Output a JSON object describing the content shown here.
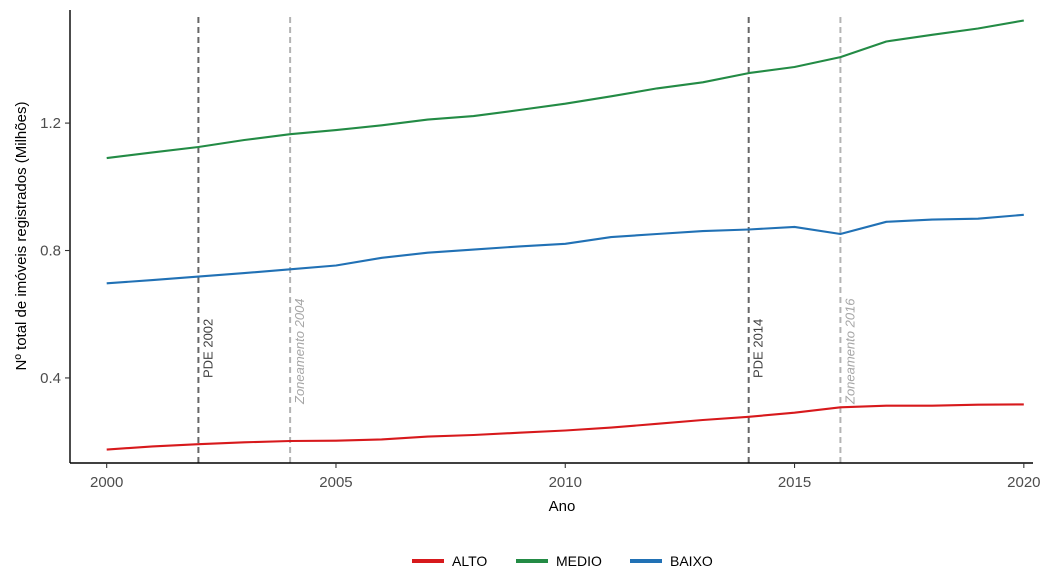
{
  "chart_data": {
    "type": "line",
    "title": "",
    "xlabel": "Ano",
    "ylabel": "Nº total de imóveis registrados (Milhões)",
    "x": [
      2000,
      2001,
      2002,
      2003,
      2004,
      2005,
      2006,
      2007,
      2008,
      2009,
      2010,
      2011,
      2012,
      2013,
      2014,
      2015,
      2016,
      2017,
      2018,
      2019,
      2020
    ],
    "xlim": [
      1999.2,
      2020.2
    ],
    "ylim": [
      0.133,
      1.555
    ],
    "x_ticks": [
      2000,
      2005,
      2010,
      2015,
      2020
    ],
    "y_ticks": [
      0.4,
      0.8,
      1.2
    ],
    "x_tick_labels": [
      "2000",
      "2005",
      "2010",
      "2015",
      "2020"
    ],
    "y_tick_labels": [
      "0.4",
      "0.8",
      "1.2"
    ],
    "grid": false,
    "legend_position": "bottom",
    "series": [
      {
        "name": "ALTO",
        "color": "#d7191c",
        "values": [
          0.175,
          0.185,
          0.192,
          0.198,
          0.202,
          0.203,
          0.207,
          0.216,
          0.221,
          0.228,
          0.235,
          0.244,
          0.256,
          0.268,
          0.278,
          0.291,
          0.308,
          0.313,
          0.313,
          0.316,
          0.317
        ]
      },
      {
        "name": "MEDIO",
        "color": "#238b45",
        "values": [
          1.09,
          1.108,
          1.125,
          1.147,
          1.165,
          1.178,
          1.193,
          1.211,
          1.222,
          1.241,
          1.261,
          1.284,
          1.309,
          1.328,
          1.357,
          1.376,
          1.407,
          1.456,
          1.477,
          1.497,
          1.522
        ]
      },
      {
        "name": "BAIXO",
        "color": "#2171b5",
        "values": [
          0.697,
          0.707,
          0.718,
          0.729,
          0.741,
          0.753,
          0.777,
          0.793,
          0.803,
          0.813,
          0.821,
          0.842,
          0.852,
          0.861,
          0.866,
          0.874,
          0.852,
          0.89,
          0.897,
          0.9,
          0.912
        ]
      }
    ],
    "annotations": [
      {
        "x": 2002,
        "label": "PDE 2002",
        "color": "#666666",
        "label_color": "#404040",
        "italic": false
      },
      {
        "x": 2004,
        "label": "Zoneamento 2004",
        "color": "#b3b3b3",
        "label_color": "#a6a6a6",
        "italic": true
      },
      {
        "x": 2014,
        "label": "PDE 2014",
        "color": "#666666",
        "label_color": "#404040",
        "italic": false
      },
      {
        "x": 2016,
        "label": "Zoneamento 2016",
        "color": "#b3b3b3",
        "label_color": "#a6a6a6",
        "italic": true
      }
    ]
  }
}
